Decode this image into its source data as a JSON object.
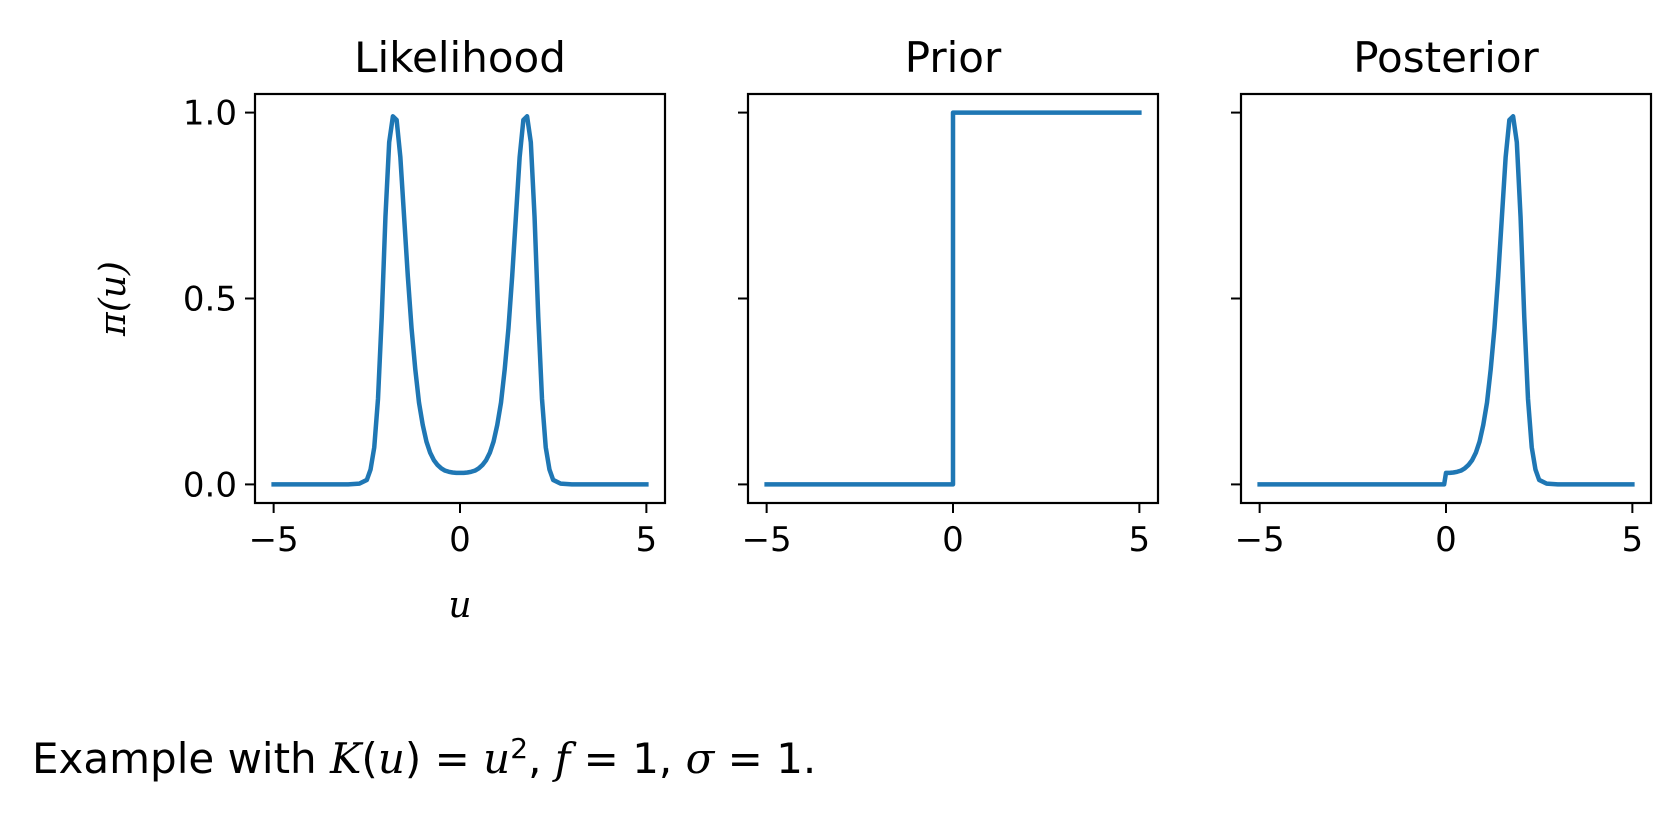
{
  "chart_data": [
    {
      "type": "line",
      "title": "Likelihood",
      "xlabel": "u",
      "ylabel": "π(u)",
      "xlim": [
        -5.5,
        5.5
      ],
      "ylim": [
        -0.05,
        1.05
      ],
      "xticks": [
        -5,
        0,
        5
      ],
      "xtick_labels": [
        "−5",
        "0",
        "5"
      ],
      "yticks": [
        0.0,
        0.5,
        1.0
      ],
      "ytick_labels": [
        "0.0",
        "0.5",
        "1.0"
      ],
      "color": "#1f77b4",
      "series": [
        {
          "x": [
            -5,
            -3.0,
            -2.7,
            -2.5,
            -2.4,
            -2.3,
            -2.2,
            -2.1,
            -2.0,
            -1.9,
            -1.8,
            -1.7,
            -1.6,
            -1.5,
            -1.4,
            -1.3,
            -1.2,
            -1.1,
            -1.0,
            -0.9,
            -0.8,
            -0.7,
            -0.6,
            -0.5,
            -0.4,
            -0.3,
            -0.2,
            -0.1,
            0,
            0.1,
            0.2,
            0.3,
            0.4,
            0.5,
            0.6,
            0.7,
            0.8,
            0.9,
            1.0,
            1.1,
            1.2,
            1.3,
            1.4,
            1.5,
            1.6,
            1.7,
            1.8,
            1.9,
            2.0,
            2.1,
            2.2,
            2.3,
            2.4,
            2.5,
            2.7,
            3.0,
            5
          ],
          "y": [
            0,
            0,
            0.002,
            0.012,
            0.04,
            0.1,
            0.23,
            0.45,
            0.72,
            0.92,
            0.99,
            0.98,
            0.88,
            0.72,
            0.56,
            0.42,
            0.31,
            0.22,
            0.16,
            0.115,
            0.085,
            0.065,
            0.052,
            0.043,
            0.037,
            0.034,
            0.032,
            0.031,
            0.031,
            0.031,
            0.032,
            0.034,
            0.037,
            0.043,
            0.052,
            0.065,
            0.085,
            0.115,
            0.16,
            0.22,
            0.31,
            0.42,
            0.56,
            0.72,
            0.88,
            0.98,
            0.99,
            0.92,
            0.72,
            0.45,
            0.23,
            0.1,
            0.04,
            0.012,
            0.002,
            0,
            0
          ]
        }
      ]
    },
    {
      "type": "line",
      "title": "Prior",
      "xlim": [
        -5.5,
        5.5
      ],
      "ylim": [
        -0.05,
        1.05
      ],
      "xticks": [
        -5,
        0,
        5
      ],
      "xtick_labels": [
        "−5",
        "0",
        "5"
      ],
      "yticks": [
        0.0,
        0.5,
        1.0
      ],
      "ytick_labels": [],
      "color": "#1f77b4",
      "series": [
        {
          "x": [
            -5,
            0,
            0,
            5
          ],
          "y": [
            0,
            0,
            1,
            1
          ]
        }
      ]
    },
    {
      "type": "line",
      "title": "Posterior",
      "xlim": [
        -5.5,
        5.5
      ],
      "ylim": [
        -0.05,
        1.05
      ],
      "xticks": [
        -5,
        0,
        5
      ],
      "xtick_labels": [
        "−5",
        "0",
        "5"
      ],
      "yticks": [
        0.0,
        0.5,
        1.0
      ],
      "ytick_labels": [],
      "color": "#1f77b4",
      "series": [
        {
          "x": [
            -5,
            -0.05,
            0,
            0.1,
            0.2,
            0.3,
            0.4,
            0.5,
            0.6,
            0.7,
            0.8,
            0.9,
            1.0,
            1.1,
            1.2,
            1.3,
            1.4,
            1.5,
            1.6,
            1.7,
            1.8,
            1.9,
            2.0,
            2.1,
            2.2,
            2.3,
            2.4,
            2.5,
            2.7,
            3.0,
            5
          ],
          "y": [
            0,
            0,
            0.031,
            0.031,
            0.032,
            0.034,
            0.037,
            0.043,
            0.052,
            0.065,
            0.085,
            0.115,
            0.16,
            0.22,
            0.31,
            0.42,
            0.56,
            0.72,
            0.88,
            0.98,
            0.99,
            0.92,
            0.72,
            0.45,
            0.23,
            0.1,
            0.04,
            0.012,
            0.002,
            0,
            0
          ]
        }
      ]
    }
  ],
  "caption": {
    "prefix": "Example with ",
    "K": "K",
    "paren_open": "(",
    "u1": "u",
    "paren_close": ")",
    "eq1": " = ",
    "u2": "u",
    "exp": "2",
    "sep1": ", ",
    "f": "f",
    "eq2": " = 1, ",
    "sigma": "σ",
    "eq3": " = 1."
  }
}
